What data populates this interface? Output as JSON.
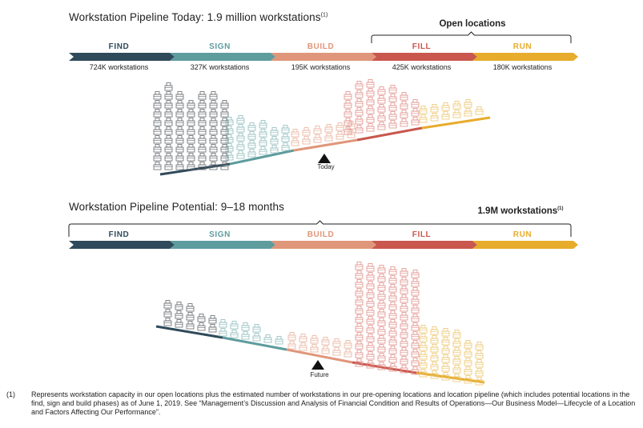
{
  "top": {
    "title": "Workstation Pipeline Today: 1.9 million workstations",
    "title_note": "(1)",
    "bracket_label": "Open locations",
    "stages": [
      {
        "label": "FIND",
        "count": "724K workstations",
        "color": "#2f4a5a"
      },
      {
        "label": "SIGN",
        "count": "327K workstations",
        "color": "#5e9c9e"
      },
      {
        "label": "BUILD",
        "count": "195K workstations",
        "color": "#e0967a"
      },
      {
        "label": "FILL",
        "count": "425K workstations",
        "color": "#c9574e"
      },
      {
        "label": "RUN",
        "count": "180K workstations",
        "color": "#e7ac2c"
      }
    ],
    "marker_label": "Today"
  },
  "bottom": {
    "title": "Workstation Pipeline Potential: 9–18 months",
    "bracket_label": "1.9M workstations",
    "bracket_note": "(1)",
    "stages": [
      {
        "label": "FIND",
        "color": "#2f4a5a"
      },
      {
        "label": "SIGN",
        "color": "#5e9c9e"
      },
      {
        "label": "BUILD",
        "color": "#e0967a"
      },
      {
        "label": "FILL",
        "color": "#c9574e"
      },
      {
        "label": "RUN",
        "color": "#e7ac2c"
      }
    ],
    "marker_label": "Future"
  },
  "footnote": {
    "number": "(1)",
    "text": "Represents workstation capacity in our open locations plus the estimated number of workstations in our pre-opening locations and location pipeline (which includes potential locations in the find, sign and build phases) as of June 1, 2019. See “Management’s Discussion and Analysis of Financial Condition and Results of Operations—Our Business Model—Lifecycle of a Location and Factors Affecting Our Performance”."
  },
  "icon": "desk-workstation-icon"
}
